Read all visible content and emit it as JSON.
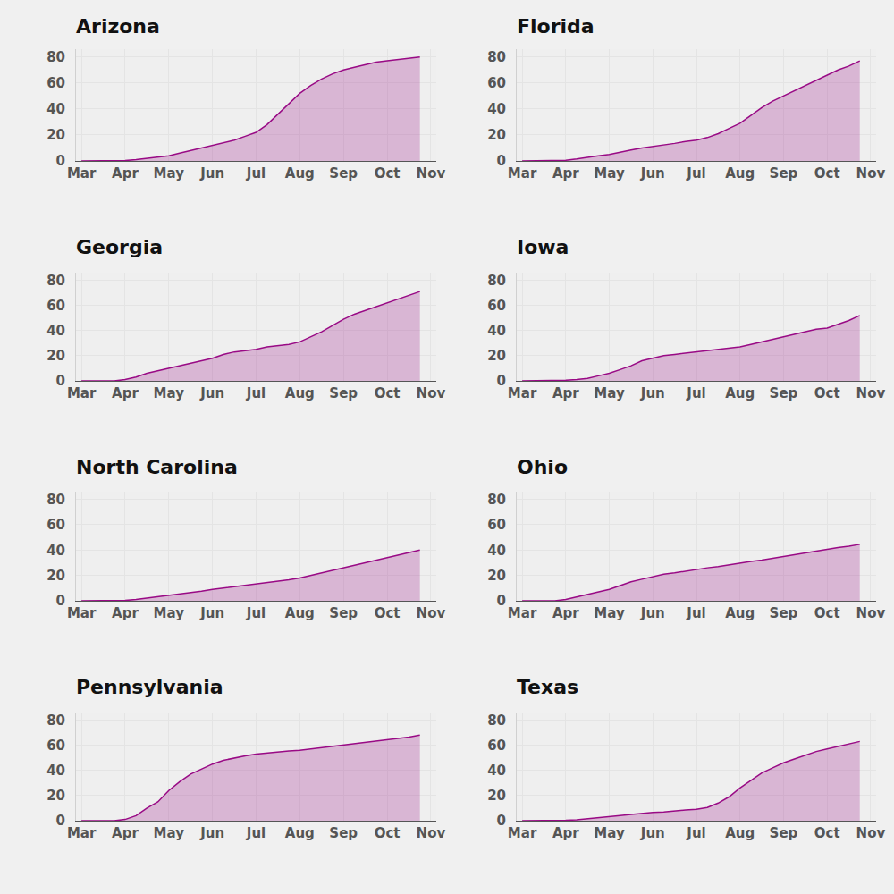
{
  "chart_data": [
    {
      "type": "area",
      "title": "Arizona",
      "color": "#990a85",
      "grid": true,
      "ylim": [
        0,
        86
      ],
      "yticks": [
        0,
        20,
        40,
        60,
        80
      ],
      "categories": [
        "Mar",
        null,
        null,
        null,
        "Apr",
        null,
        null,
        null,
        "May",
        null,
        null,
        null,
        "Jun",
        null,
        null,
        null,
        "Jul",
        null,
        null,
        null,
        "Aug",
        null,
        null,
        null,
        "Sep",
        null,
        null,
        null,
        "Oct",
        null,
        null,
        null,
        "Nov"
      ],
      "values": [
        0,
        0,
        0,
        0,
        0.3,
        1,
        2,
        3,
        4,
        6,
        8,
        10,
        12,
        14,
        16,
        19,
        22,
        28,
        36,
        44,
        52,
        58,
        63,
        67,
        70,
        72,
        74,
        76,
        77,
        78,
        79,
        80,
        null
      ]
    },
    {
      "type": "area",
      "title": "Florida",
      "color": "#990a85",
      "grid": true,
      "ylim": [
        0,
        86
      ],
      "yticks": [
        0,
        20,
        40,
        60,
        80
      ],
      "categories": [
        "Mar",
        null,
        null,
        null,
        "Apr",
        null,
        null,
        null,
        "May",
        null,
        null,
        null,
        "Jun",
        null,
        null,
        null,
        "Jul",
        null,
        null,
        null,
        "Aug",
        null,
        null,
        null,
        "Sep",
        null,
        null,
        null,
        "Oct",
        null,
        null,
        null,
        "Nov"
      ],
      "values": [
        0,
        0,
        0,
        0,
        0.5,
        1.5,
        3,
        4,
        5,
        7,
        8.5,
        10,
        11,
        12,
        13.5,
        15,
        16,
        18,
        21,
        25,
        29,
        35,
        41,
        46,
        50,
        54,
        58,
        62,
        66,
        70,
        73,
        77,
        null
      ]
    },
    {
      "type": "area",
      "title": "Georgia",
      "color": "#990a85",
      "grid": true,
      "ylim": [
        0,
        86
      ],
      "yticks": [
        0,
        20,
        40,
        60,
        80
      ],
      "categories": [
        "Mar",
        null,
        null,
        null,
        "Apr",
        null,
        null,
        null,
        "May",
        null,
        null,
        null,
        "Jun",
        null,
        null,
        null,
        "Jul",
        null,
        null,
        null,
        "Aug",
        null,
        null,
        null,
        "Sep",
        null,
        null,
        null,
        "Oct",
        null,
        null,
        null,
        "Nov"
      ],
      "values": [
        0,
        0,
        0,
        0,
        1,
        3,
        6,
        8,
        10,
        12,
        14,
        16,
        18,
        21,
        23,
        24,
        25,
        27,
        28,
        29,
        31,
        35,
        39,
        44,
        49,
        53,
        56,
        59,
        62,
        65,
        68,
        71,
        null
      ]
    },
    {
      "type": "area",
      "title": "Iowa",
      "color": "#990a85",
      "grid": true,
      "ylim": [
        0,
        86
      ],
      "yticks": [
        0,
        20,
        40,
        60,
        80
      ],
      "categories": [
        "Mar",
        null,
        null,
        null,
        "Apr",
        null,
        null,
        null,
        "May",
        null,
        null,
        null,
        "Jun",
        null,
        null,
        null,
        "Jul",
        null,
        null,
        null,
        "Aug",
        null,
        null,
        null,
        "Sep",
        null,
        null,
        null,
        "Oct",
        null,
        null,
        null,
        "Nov"
      ],
      "values": [
        0,
        0,
        0,
        0,
        0.5,
        1,
        2,
        4,
        6,
        9,
        12,
        16,
        18,
        20,
        21,
        22,
        22.5,
        23.5,
        25,
        26,
        27,
        29,
        31,
        33,
        35,
        37,
        39,
        41,
        42,
        45,
        48,
        52,
        null
      ]
    },
    {
      "type": "area",
      "title": "North Carolina",
      "color": "#990a85",
      "grid": true,
      "ylim": [
        0,
        86
      ],
      "yticks": [
        0,
        20,
        40,
        60,
        80
      ],
      "categories": [
        "Mar",
        null,
        null,
        null,
        "Apr",
        null,
        null,
        null,
        "May",
        null,
        null,
        null,
        "Jun",
        null,
        null,
        null,
        "Jul",
        null,
        null,
        null,
        "Aug",
        null,
        null,
        null,
        "Sep",
        null,
        null,
        null,
        "Oct",
        null,
        null,
        null,
        "Nov"
      ],
      "values": [
        0,
        0,
        0,
        0,
        0.3,
        1,
        2,
        3,
        4,
        5,
        6.5,
        7.5,
        9,
        10,
        11,
        12,
        13,
        14,
        15,
        16.5,
        18,
        20,
        22,
        24,
        26,
        28,
        30,
        32,
        33.5,
        35.5,
        37.5,
        40,
        null
      ]
    },
    {
      "type": "area",
      "title": "Ohio",
      "color": "#990a85",
      "grid": true,
      "ylim": [
        0,
        86
      ],
      "yticks": [
        0,
        20,
        40,
        60,
        80
      ],
      "categories": [
        "Mar",
        null,
        null,
        null,
        "Apr",
        null,
        null,
        null,
        "May",
        null,
        null,
        null,
        "Jun",
        null,
        null,
        null,
        "Jul",
        null,
        null,
        null,
        "Aug",
        null,
        null,
        null,
        "Sep",
        null,
        null,
        null,
        "Oct",
        null,
        null,
        null,
        "Nov"
      ],
      "values": [
        0,
        0,
        0,
        0,
        1,
        3,
        5,
        7,
        9,
        12,
        15,
        17,
        19,
        21,
        22,
        23.5,
        25,
        26,
        27,
        28.5,
        30,
        31,
        32,
        33.5,
        35,
        36,
        38,
        39.5,
        41,
        42,
        43,
        44.5,
        null
      ]
    },
    {
      "type": "area",
      "title": "Pennsylvania",
      "color": "#990a85",
      "grid": true,
      "ylim": [
        0,
        86
      ],
      "yticks": [
        0,
        20,
        40,
        60,
        80
      ],
      "categories": [
        "Mar",
        null,
        null,
        null,
        "Apr",
        null,
        null,
        null,
        "May",
        null,
        null,
        null,
        "Jun",
        null,
        null,
        null,
        "Jul",
        null,
        null,
        null,
        "Aug",
        null,
        null,
        null,
        "Sep",
        null,
        null,
        null,
        "Oct",
        null,
        null,
        null,
        "Nov"
      ],
      "values": [
        0,
        0,
        0,
        0,
        1,
        4,
        10,
        15,
        24,
        31,
        37,
        41,
        45,
        48,
        50,
        51.5,
        53,
        54,
        55,
        55.5,
        56,
        57,
        58,
        59,
        60,
        61,
        62,
        63,
        64,
        65,
        66.5,
        68,
        null
      ]
    },
    {
      "type": "area",
      "title": "Texas",
      "color": "#990a85",
      "grid": true,
      "ylim": [
        0,
        86
      ],
      "yticks": [
        0,
        20,
        40,
        60,
        80
      ],
      "categories": [
        "Mar",
        null,
        null,
        null,
        "Apr",
        null,
        null,
        null,
        "May",
        null,
        null,
        null,
        "Jun",
        null,
        null,
        null,
        "Jul",
        null,
        null,
        null,
        "Aug",
        null,
        null,
        null,
        "Sep",
        null,
        null,
        null,
        "Oct",
        null,
        null,
        null,
        "Nov"
      ],
      "values": [
        0,
        0,
        0,
        0,
        0.3,
        0.7,
        1.5,
        2,
        3,
        4,
        5,
        6,
        6.5,
        7,
        8,
        8.5,
        9,
        10.5,
        14,
        19,
        26,
        32,
        38,
        42,
        46,
        49,
        52,
        55,
        57,
        59,
        61,
        63,
        null
      ]
    }
  ]
}
